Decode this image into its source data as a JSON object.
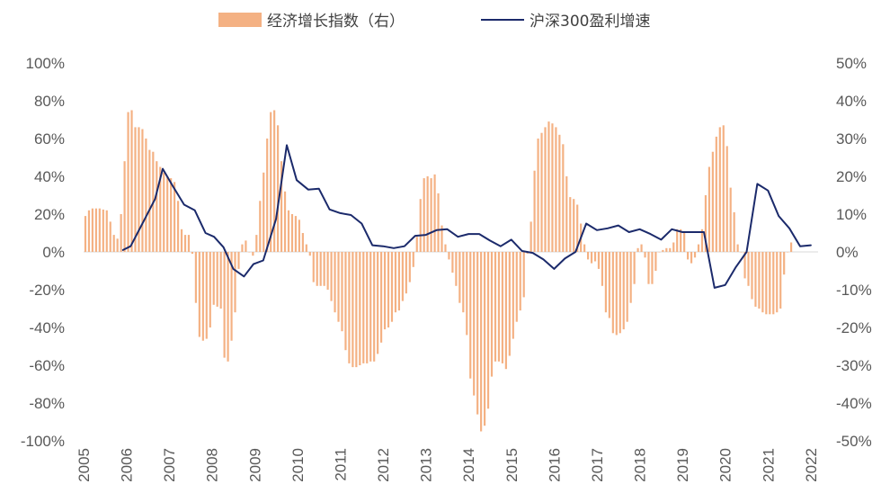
{
  "chart_data": {
    "type": "bar+line",
    "series": [
      {
        "name": "经济增长指数（右）",
        "type": "bar",
        "axis": "right",
        "color": "#f4b183",
        "values": [
          9.5,
          11.0,
          11.5,
          11.5,
          11.5,
          11.2,
          11.0,
          8.0,
          4.5,
          3.5,
          10.0,
          24.0,
          37.0,
          37.5,
          33.0,
          33.0,
          32.5,
          30.0,
          27.0,
          26.5,
          24.0,
          22.5,
          21.0,
          20.0,
          19.5,
          18.5,
          13.5,
          6.0,
          4.5,
          4.5,
          -0.5,
          -13.5,
          -22.5,
          -23.5,
          -23.0,
          -20.0,
          -14.0,
          -14.5,
          -15.0,
          -28.0,
          -29.0,
          -23.5,
          -16.0,
          -4.5,
          2.0,
          3.0,
          0.0,
          -1.0,
          4.5,
          13.5,
          21.0,
          30.0,
          37.0,
          37.5,
          33.5,
          24.0,
          16.0,
          11.0,
          10.0,
          9.5,
          8.5,
          5.0,
          2.0,
          -1.0,
          -8.0,
          -9.0,
          -9.0,
          -9.0,
          -10.0,
          -13.0,
          -16.0,
          -18.5,
          -21.0,
          -26.0,
          -29.5,
          -30.5,
          -30.5,
          -30.0,
          -29.5,
          -29.5,
          -29.0,
          -29.0,
          -27.0,
          -24.0,
          -20.5,
          -20.0,
          -18.5,
          -16.0,
          -15.5,
          -13.0,
          -11.0,
          -8.0,
          -4.0,
          4.0,
          14.0,
          19.5,
          20.0,
          19.5,
          20.5,
          15.5,
          7.0,
          2.0,
          -2.0,
          -5.5,
          -9.0,
          -13.5,
          -16.0,
          -22.0,
          -33.5,
          -38.0,
          -43.0,
          -47.5,
          -46.0,
          -41.5,
          -33.0,
          -29.0,
          -29.0,
          -29.5,
          -31.0,
          -27.5,
          -23.0,
          -18.5,
          -15.5,
          -12.0,
          -0.5,
          8.0,
          21.5,
          30.0,
          31.5,
          33.0,
          34.5,
          34.0,
          33.0,
          31.0,
          28.5,
          20.0,
          14.5,
          14.0,
          12.5,
          7.5,
          2.0,
          -2.0,
          -3.0,
          -2.5,
          -4.5,
          -9.0,
          -16.0,
          -17.5,
          -21.5,
          -22.0,
          -21.5,
          -20.5,
          -18.5,
          -13.5,
          -8.5,
          1.0,
          2.0,
          -1.5,
          -8.5,
          -8.5,
          -5.0,
          0.0,
          0.5,
          1.0,
          1.0,
          2.5,
          6.0,
          6.0,
          5.5,
          -2.0,
          -3.0,
          -1.5,
          2.0,
          6.0,
          15.0,
          22.5,
          26.5,
          30.5,
          33.0,
          33.5,
          28.0,
          17.0,
          10.5,
          2.0,
          0.0,
          -7.0,
          -9.0,
          -12.5,
          -14.5,
          -15.0,
          -16.0,
          -16.5,
          -16.5,
          -16.5,
          -16.0,
          -15.0,
          -6.0,
          0.0,
          2.5
        ]
      },
      {
        "name": "沪深300盈利增速",
        "type": "line",
        "axis": "left",
        "color": "#1b2a6b",
        "values": [
          [
            2005.92,
            1.0
          ],
          [
            2006.1,
            3.0
          ],
          [
            2006.42,
            17.0
          ],
          [
            2006.67,
            28.0
          ],
          [
            2006.85,
            44.0
          ],
          [
            2007.08,
            35.0
          ],
          [
            2007.35,
            25.0
          ],
          [
            2007.6,
            22.0
          ],
          [
            2007.85,
            10.0
          ],
          [
            2008.05,
            8.0
          ],
          [
            2008.27,
            2.5
          ],
          [
            2008.5,
            -9.0
          ],
          [
            2008.75,
            -13.0
          ],
          [
            2008.97,
            -6.5
          ],
          [
            2009.2,
            -4.5
          ],
          [
            2009.5,
            17.5
          ],
          [
            2009.75,
            56.5
          ],
          [
            2009.98,
            38.0
          ],
          [
            2010.25,
            33.0
          ],
          [
            2010.5,
            33.5
          ],
          [
            2010.75,
            22.5
          ],
          [
            2011.0,
            20.5
          ],
          [
            2011.25,
            19.5
          ],
          [
            2011.5,
            15.0
          ],
          [
            2011.75,
            3.5
          ],
          [
            2012.0,
            3.0
          ],
          [
            2012.25,
            2.0
          ],
          [
            2012.5,
            3.0
          ],
          [
            2012.75,
            8.5
          ],
          [
            2013.0,
            9.0
          ],
          [
            2013.25,
            11.5
          ],
          [
            2013.5,
            12.0
          ],
          [
            2013.75,
            8.0
          ],
          [
            2014.0,
            9.5
          ],
          [
            2014.25,
            9.5
          ],
          [
            2014.5,
            6.0
          ],
          [
            2014.75,
            3.0
          ],
          [
            2015.0,
            6.5
          ],
          [
            2015.25,
            0.5
          ],
          [
            2015.5,
            -0.5
          ],
          [
            2015.75,
            -4.0
          ],
          [
            2016.0,
            -9.0
          ],
          [
            2016.25,
            -3.5
          ],
          [
            2016.5,
            0.0
          ],
          [
            2016.75,
            15.0
          ],
          [
            2017.0,
            11.5
          ],
          [
            2017.25,
            12.5
          ],
          [
            2017.5,
            14.0
          ],
          [
            2017.75,
            10.5
          ],
          [
            2018.0,
            12.0
          ],
          [
            2018.25,
            9.5
          ],
          [
            2018.5,
            6.5
          ],
          [
            2018.75,
            12.0
          ],
          [
            2019.0,
            10.5
          ],
          [
            2019.25,
            10.5
          ],
          [
            2019.5,
            10.5
          ],
          [
            2019.75,
            -19.0
          ],
          [
            2020.0,
            -17.5
          ],
          [
            2020.25,
            -8.0
          ],
          [
            2020.5,
            0.0
          ],
          [
            2020.75,
            36.0
          ],
          [
            2021.0,
            32.5
          ],
          [
            2021.25,
            19.0
          ],
          [
            2021.5,
            12.5
          ],
          [
            2021.75,
            3.0
          ],
          [
            2022.0,
            3.5
          ]
        ]
      }
    ],
    "x_axis": {
      "range": [
        2005,
        2022.17
      ],
      "tick_labels": [
        "2005",
        "2006",
        "2007",
        "2008",
        "2009",
        "2010",
        "2011",
        "2012",
        "2013",
        "2014",
        "2015",
        "2016",
        "2017",
        "2018",
        "2019",
        "2020",
        "2021",
        "2022"
      ],
      "label_rotation": -90
    },
    "y_left": {
      "range": [
        -100,
        100
      ],
      "ticks": [
        100,
        80,
        60,
        40,
        20,
        0,
        -20,
        -40,
        -60,
        -80,
        -100
      ],
      "tick_labels": [
        "100%",
        "80%",
        "60%",
        "40%",
        "20%",
        "0%",
        "-20%",
        "-40%",
        "-60%",
        "-80%",
        "-100%"
      ]
    },
    "y_right": {
      "range": [
        -50,
        50
      ],
      "ticks": [
        50,
        40,
        30,
        20,
        10,
        0,
        -10,
        -20,
        -30,
        -40,
        -50
      ],
      "tick_labels": [
        "50%",
        "40%",
        "30%",
        "20%",
        "10%",
        "0%",
        "-10%",
        "-20%",
        "-30%",
        "-40%",
        "-50%"
      ]
    },
    "legend": {
      "placement": "top-center",
      "items": [
        {
          "label": "经济增长指数（右）",
          "swatch": "bar",
          "color": "#f4b183"
        },
        {
          "label": "沪深300盈利增速",
          "swatch": "line",
          "color": "#1b2a6b"
        }
      ]
    },
    "grid": false,
    "zero_line_color": "#d9d9d9"
  }
}
